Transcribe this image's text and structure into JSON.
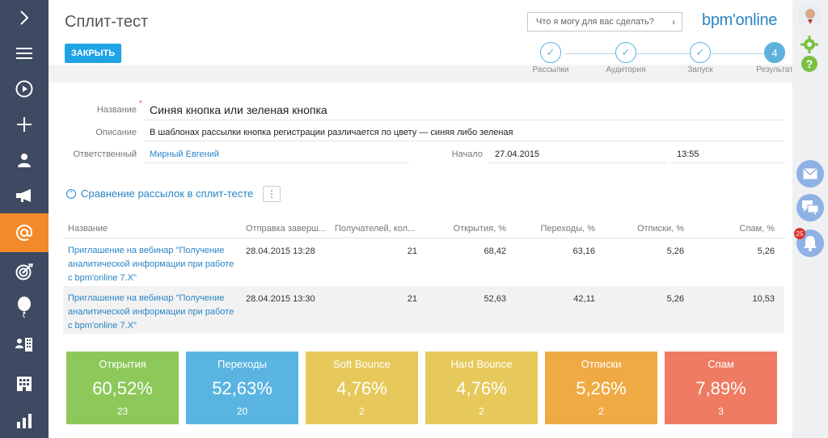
{
  "nav": {
    "items": [
      "expand-icon",
      "menu-icon",
      "play-icon",
      "add-icon",
      "contact-icon",
      "megaphone-icon",
      "email-icon",
      "target-icon",
      "balloon-icon",
      "people-building-icon",
      "building-icon",
      "chart-icon"
    ],
    "active": "email-icon",
    "accent_color": "#f28a2a"
  },
  "header": {
    "title": "Сплит-тест",
    "close_label": "ЗАКРЫТЬ",
    "search_placeholder": "Что я могу для вас сделать?",
    "logo": "bpm'online"
  },
  "steps": [
    {
      "label": "Рассылки",
      "state": "done",
      "mark": "✓"
    },
    {
      "label": "Аудитория",
      "state": "done",
      "mark": "✓"
    },
    {
      "label": "Запуск",
      "state": "done",
      "mark": "✓"
    },
    {
      "label": "Результат",
      "state": "current",
      "mark": "4"
    }
  ],
  "form": {
    "name_label": "Название",
    "name_value": "Синяя кнопка или зеленая кнопка",
    "desc_label": "Описание",
    "desc_value": "В шаблонах рассылки кнопка регистрации различается по цвету — синяя либо зеленая",
    "owner_label": "Ответственный",
    "owner_value": "Мирный Евгений",
    "start_label": "Начало",
    "start_date": "27.04.2015",
    "start_time": "13:55"
  },
  "section": {
    "title": "Сравнение рассылок в сплит-тесте",
    "menu_glyph": "⋮"
  },
  "table": {
    "columns": [
      "Название",
      "Отправка заверш...",
      "Получателей, кол...",
      "Открытия, %",
      "Переходы, %",
      "Отписки, %",
      "Спам, %"
    ],
    "rows": [
      {
        "name": "Приглашение на вебинар \"Получение аналитической информации при работе с bpm'online 7.X\"",
        "sent": "28.04.2015 13:28",
        "recipients": "21",
        "opens": "68,42",
        "clicks": "63,16",
        "unsub": "5,26",
        "spam": "5,26"
      },
      {
        "name": "Приглашение на вебинар \"Получение аналитической информации при работе с bpm'online 7.X\"",
        "sent": "28.04.2015 13:30",
        "recipients": "21",
        "opens": "52,63",
        "clicks": "42,11",
        "unsub": "5,26",
        "spam": "10,53"
      }
    ]
  },
  "cards": [
    {
      "title": "Открытия",
      "percent": "60,52%",
      "count": "23",
      "color": "#8cc85a"
    },
    {
      "title": "Переходы",
      "percent": "52,63%",
      "count": "20",
      "color": "#5ab4e0"
    },
    {
      "title": "Soft Bounce",
      "percent": "4,76%",
      "count": "2",
      "color": "#e6c95a"
    },
    {
      "title": "Hard Bounce",
      "percent": "4,76%",
      "count": "2",
      "color": "#e6c95a"
    },
    {
      "title": "Отписки",
      "percent": "5,26%",
      "count": "2",
      "color": "#f0aa44"
    },
    {
      "title": "Спам",
      "percent": "7,89%",
      "count": "3",
      "color": "#ee7b62"
    }
  ],
  "rightbar": {
    "notifications_count": "25"
  }
}
